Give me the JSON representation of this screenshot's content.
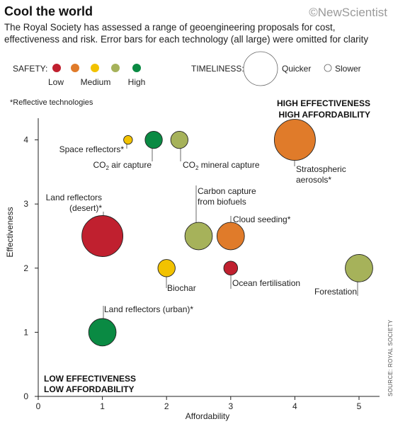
{
  "header": {
    "title": "Cool the world",
    "brand": "©NewScientist",
    "subtitle": "The Royal Society has assessed a range of geoengineering proposals for cost, effectiveness and risk. Error bars for each technology (all large) were omitted for clarity"
  },
  "legend": {
    "safety_label": "SAFETY:",
    "safety_levels": [
      {
        "label": "Low",
        "colors": [
          "#c0202f",
          "#e07b2a"
        ]
      },
      {
        "label": "Medium",
        "colors": [
          "#f2c200",
          "#a6b25a"
        ]
      },
      {
        "label": "High",
        "colors": [
          "#0a8a43"
        ]
      }
    ],
    "timeliness_label": "TIMELINESS:",
    "quicker_label": "Quicker",
    "slower_label": "Slower"
  },
  "note": "*Reflective technologies",
  "source": "SOURCE: ROYAL SOCIETY",
  "chart_data": {
    "type": "scatter",
    "xlabel": "Affordability",
    "ylabel": "Effectiveness",
    "xlim": [
      0,
      5.3
    ],
    "ylim": [
      0,
      4.4
    ],
    "xticks": [
      0,
      1,
      2,
      3,
      4,
      5
    ],
    "yticks": [
      0,
      1,
      2,
      3,
      4
    ],
    "corner_labels": {
      "top_right": [
        "HIGH EFFECTIVENESS",
        "HIGH AFFORDABILITY"
      ],
      "bottom_left": [
        "LOW EFFECTIVENESS",
        "LOW AFFORDABILITY"
      ]
    },
    "points": [
      {
        "name": "Space reflectors*",
        "x": 1.4,
        "y": 4.0,
        "safety": "Medium",
        "color": "#f2c200",
        "timeliness": 0.05
      },
      {
        "name": "CO2 air capture",
        "x": 1.8,
        "y": 4.0,
        "safety": "High",
        "color": "#0a8a43",
        "timeliness": 0.3
      },
      {
        "name": "CO2 mineral capture",
        "x": 2.2,
        "y": 4.0,
        "safety": "Medium",
        "color": "#a6b25a",
        "timeliness": 0.3
      },
      {
        "name": "Stratospheric aerosols*",
        "x": 4.0,
        "y": 4.0,
        "safety": "Low",
        "color": "#e07b2a",
        "timeliness": 1.0
      },
      {
        "name": "Land reflectors (desert)*",
        "x": 1.0,
        "y": 2.5,
        "safety": "Low",
        "color": "#c0202f",
        "timeliness": 1.0
      },
      {
        "name": "Carbon capture from biofuels",
        "x": 2.5,
        "y": 2.5,
        "safety": "Medium",
        "color": "#a6b25a",
        "timeliness": 0.6
      },
      {
        "name": "Cloud seeding*",
        "x": 3.0,
        "y": 2.5,
        "safety": "Low",
        "color": "#e07b2a",
        "timeliness": 0.6
      },
      {
        "name": "Biochar",
        "x": 2.0,
        "y": 2.0,
        "safety": "Medium",
        "color": "#f2c200",
        "timeliness": 0.3
      },
      {
        "name": "Ocean fertilisation",
        "x": 3.0,
        "y": 2.0,
        "safety": "Low",
        "color": "#c0202f",
        "timeliness": 0.2
      },
      {
        "name": "Forestation",
        "x": 5.0,
        "y": 2.0,
        "safety": "Medium",
        "color": "#a6b25a",
        "timeliness": 0.6
      },
      {
        "name": "Land reflectors (urban)*",
        "x": 1.0,
        "y": 1.0,
        "safety": "High",
        "color": "#0a8a43",
        "timeliness": 0.6
      }
    ]
  }
}
